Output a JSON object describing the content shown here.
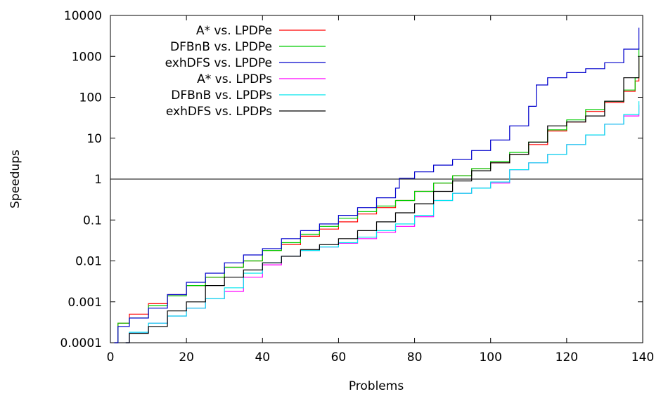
{
  "chart_data": {
    "type": "line",
    "title": "",
    "xlabel": "Problems",
    "ylabel": "Speedups",
    "xlim": [
      0,
      140
    ],
    "ylim": [
      0.0001,
      10000
    ],
    "yscale": "log",
    "x_ticks": [
      0,
      20,
      40,
      60,
      80,
      100,
      120,
      140
    ],
    "x_tick_labels": [
      "0",
      "20",
      "40",
      "60",
      "80",
      "100",
      "120",
      "140"
    ],
    "y_ticks": [
      0.0001,
      0.001,
      0.01,
      0.1,
      1,
      10,
      100,
      1000,
      10000
    ],
    "y_tick_labels": [
      "0.0001",
      "0.001",
      "0.01",
      "0.1",
      "1",
      "10",
      "100",
      "1000",
      "10000"
    ],
    "grid": false,
    "legend_position": "top-left",
    "reference_line": {
      "y": 1,
      "color": "#000000"
    },
    "series": [
      {
        "name": "A* vs. LPDPe",
        "color": "#ff0000",
        "x": [
          1,
          2,
          5,
          10,
          15,
          20,
          25,
          30,
          35,
          40,
          45,
          50,
          55,
          60,
          65,
          70,
          75,
          80,
          85,
          90,
          95,
          100,
          105,
          110,
          115,
          120,
          125,
          130,
          135,
          138,
          139
        ],
        "y": [
          0.0001,
          0.0003,
          0.0005,
          0.0009,
          0.0015,
          0.0025,
          0.004,
          0.007,
          0.01,
          0.018,
          0.025,
          0.04,
          0.06,
          0.09,
          0.14,
          0.2,
          0.3,
          0.5,
          0.8,
          1.2,
          1.8,
          2.5,
          4,
          7,
          15,
          25,
          45,
          75,
          140,
          250,
          900
        ]
      },
      {
        "name": "DFBnB vs. LPDPe",
        "color": "#00cc00",
        "x": [
          1,
          2,
          5,
          10,
          15,
          20,
          25,
          30,
          35,
          40,
          45,
          50,
          55,
          60,
          65,
          70,
          75,
          80,
          85,
          90,
          95,
          100,
          105,
          110,
          115,
          120,
          125,
          130,
          135,
          138,
          139
        ],
        "y": [
          0.0001,
          0.0003,
          0.0004,
          0.0008,
          0.0014,
          0.0025,
          0.004,
          0.007,
          0.01,
          0.018,
          0.028,
          0.045,
          0.07,
          0.11,
          0.16,
          0.22,
          0.3,
          0.5,
          0.8,
          1.2,
          1.8,
          2.7,
          4.5,
          8,
          16,
          28,
          50,
          80,
          150,
          300,
          1600
        ]
      },
      {
        "name": "exhDFS vs. LPDPe",
        "color": "#0000cc",
        "x": [
          1,
          2,
          5,
          10,
          15,
          20,
          25,
          30,
          35,
          40,
          45,
          50,
          55,
          60,
          65,
          70,
          75,
          76,
          80,
          85,
          90,
          95,
          100,
          105,
          110,
          112,
          115,
          120,
          125,
          130,
          135,
          139
        ],
        "y": [
          0.0001,
          0.00025,
          0.0004,
          0.0007,
          0.0015,
          0.003,
          0.005,
          0.009,
          0.014,
          0.02,
          0.035,
          0.055,
          0.08,
          0.13,
          0.2,
          0.35,
          0.6,
          1.05,
          1.5,
          2.2,
          3,
          5,
          9,
          20,
          60,
          200,
          300,
          400,
          500,
          700,
          1500,
          5000
        ]
      },
      {
        "name": "A* vs. LPDPs",
        "color": "#ff00ff",
        "x": [
          4,
          5,
          10,
          15,
          20,
          25,
          30,
          35,
          40,
          45,
          50,
          55,
          60,
          65,
          70,
          75,
          80,
          85,
          90,
          95,
          100,
          105,
          110,
          115,
          120,
          125,
          130,
          135,
          139
        ],
        "y": [
          0.0001,
          0.00018,
          0.0003,
          0.00045,
          0.0007,
          0.0012,
          0.0018,
          0.004,
          0.008,
          0.013,
          0.018,
          0.022,
          0.027,
          0.035,
          0.05,
          0.07,
          0.12,
          0.3,
          0.45,
          0.6,
          0.8,
          1.7,
          2.5,
          4,
          7,
          12,
          22,
          35,
          65
        ]
      },
      {
        "name": "DFBnB vs. LPDPs",
        "color": "#00e5ee",
        "x": [
          4,
          5,
          10,
          15,
          20,
          25,
          30,
          35,
          40,
          45,
          50,
          55,
          60,
          65,
          70,
          75,
          80,
          85,
          90,
          95,
          100,
          105,
          110,
          115,
          120,
          125,
          130,
          135,
          139
        ],
        "y": [
          0.0001,
          0.00018,
          0.0003,
          0.00045,
          0.0007,
          0.0012,
          0.0022,
          0.005,
          0.009,
          0.013,
          0.018,
          0.022,
          0.028,
          0.038,
          0.055,
          0.08,
          0.13,
          0.3,
          0.45,
          0.6,
          0.85,
          1.7,
          2.5,
          4,
          7,
          12,
          22,
          38,
          80
        ]
      },
      {
        "name": "exhDFS vs. LPDPs",
        "color": "#000000",
        "x": [
          4,
          5,
          10,
          15,
          20,
          25,
          30,
          35,
          40,
          45,
          50,
          55,
          60,
          65,
          70,
          75,
          80,
          85,
          90,
          95,
          100,
          105,
          110,
          115,
          120,
          125,
          130,
          135,
          139
        ],
        "y": [
          0.0001,
          0.00017,
          0.00025,
          0.0006,
          0.001,
          0.0025,
          0.004,
          0.006,
          0.009,
          0.013,
          0.019,
          0.025,
          0.035,
          0.055,
          0.09,
          0.15,
          0.25,
          0.5,
          0.9,
          1.6,
          2.5,
          4,
          8,
          20,
          25,
          35,
          80,
          300,
          1000
        ]
      }
    ]
  }
}
